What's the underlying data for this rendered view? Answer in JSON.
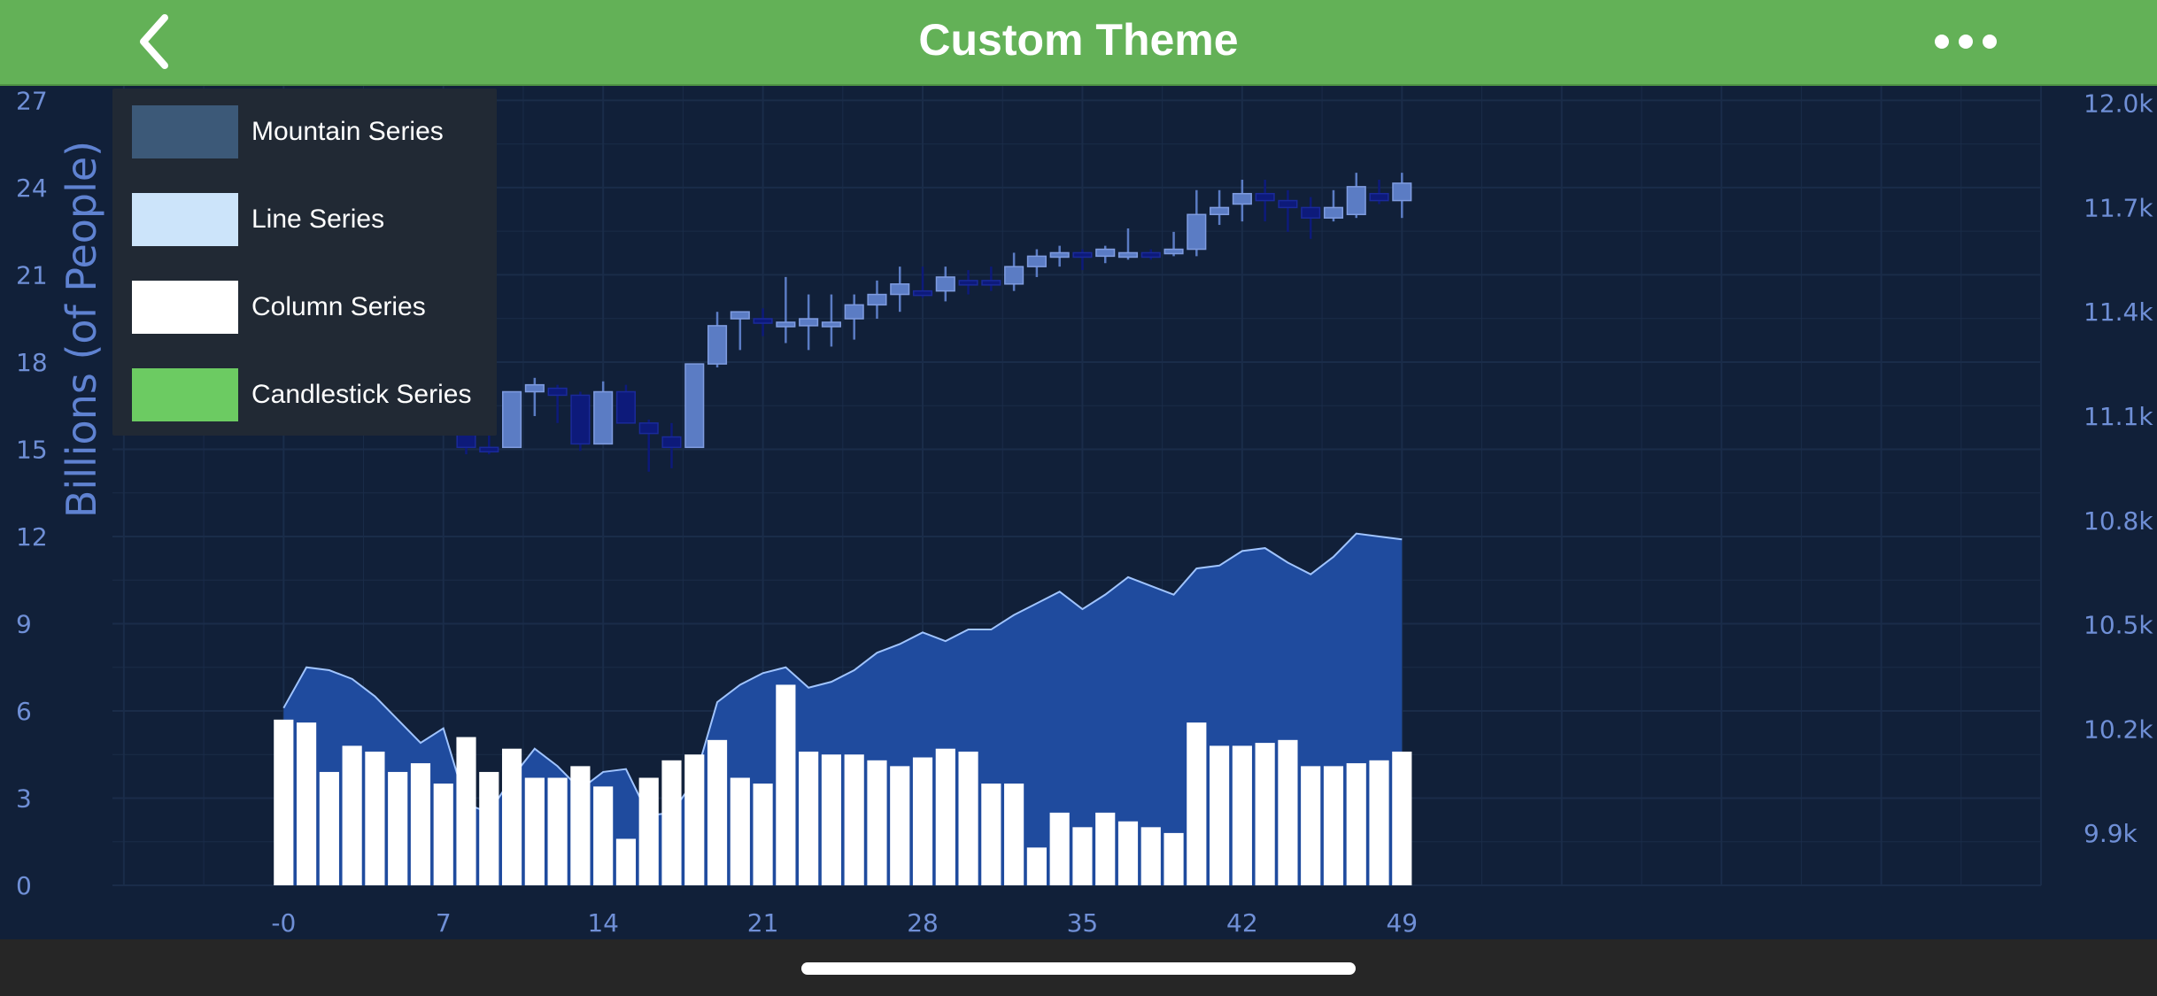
{
  "header": {
    "title": "Custom Theme",
    "back_icon": "chevron-left-icon",
    "more_icon": "ellipsis-icon"
  },
  "colors": {
    "header_bg": "#63b157",
    "chart_bg": "#112039",
    "legend_bg": "#212934",
    "mountain_fill": "#1f4b9e",
    "mountain_line": "#a0c4ff",
    "column_fill": "#ffffff",
    "candle_up": "#5b7cc4",
    "candle_down": "#0d1a7a",
    "tick_label": "#6f8fd6",
    "grid": "#1a2c49"
  },
  "legend": {
    "items": [
      {
        "label": "Mountain Series",
        "color": "#3c5978"
      },
      {
        "label": "Line Series",
        "color": "#cce4fa"
      },
      {
        "label": "Column Series",
        "color": "#ffffff"
      },
      {
        "label": "Candlestick Series",
        "color": "#6ccb62"
      }
    ]
  },
  "chart_data": {
    "type": "combo",
    "title": "",
    "xlabel": "",
    "ylabel": "Billions (of People)",
    "xlim": [
      -7.5,
      77
    ],
    "x_ticks": [
      "-0",
      "7",
      "14",
      "21",
      "28",
      "35",
      "42",
      "49"
    ],
    "y_left_ticks": [
      "0",
      "3",
      "6",
      "9",
      "12",
      "15",
      "18",
      "21",
      "24",
      "27"
    ],
    "y_left_lim": [
      0,
      27.5
    ],
    "y_right_ticks": [
      "9.9k",
      "10.2k",
      "10.5k",
      "10.8k",
      "11.1k",
      "11.4k",
      "11.7k",
      "12.0k"
    ],
    "y_right_lim": [
      9750,
      12050
    ],
    "grid": true,
    "legend_position": "top-left",
    "mountain": {
      "name": "Mountain Series",
      "x": [
        0,
        1,
        2,
        3,
        4,
        5,
        6,
        7,
        8,
        9,
        10,
        11,
        12,
        13,
        14,
        15,
        16,
        17,
        18,
        19,
        20,
        21,
        22,
        23,
        24,
        25,
        26,
        27,
        28,
        29,
        30,
        31,
        32,
        33,
        34,
        35,
        36,
        37,
        38,
        39,
        40,
        41,
        42,
        43,
        44,
        45,
        46,
        47,
        48,
        49
      ],
      "y": [
        6.1,
        7.5,
        7.4,
        7.1,
        6.5,
        5.7,
        4.9,
        5.4,
        2.8,
        2.5,
        3.7,
        4.7,
        4.1,
        3.3,
        3.9,
        4.0,
        2.4,
        2.5,
        3.6,
        6.3,
        6.9,
        7.3,
        7.5,
        6.8,
        7.0,
        7.4,
        8.0,
        8.3,
        8.7,
        8.4,
        8.8,
        8.8,
        9.3,
        9.7,
        10.1,
        9.5,
        10.0,
        10.6,
        10.3,
        10.0,
        10.9,
        11.0,
        11.5,
        11.6,
        11.1,
        10.7,
        11.3,
        12.1,
        12.0,
        11.9
      ]
    },
    "columns": {
      "name": "Column Series",
      "x": [
        0,
        1,
        2,
        3,
        4,
        5,
        6,
        7,
        8,
        9,
        10,
        11,
        12,
        13,
        14,
        15,
        16,
        17,
        18,
        19,
        20,
        21,
        22,
        23,
        24,
        25,
        26,
        27,
        28,
        29,
        30,
        31,
        32,
        33,
        34,
        35,
        36,
        37,
        38,
        39,
        40,
        41,
        42,
        43,
        44,
        45,
        46,
        47,
        48,
        49
      ],
      "y": [
        5.7,
        5.6,
        3.9,
        4.8,
        4.6,
        3.9,
        4.2,
        3.5,
        5.1,
        3.9,
        4.7,
        3.7,
        3.7,
        4.1,
        3.4,
        1.6,
        3.7,
        4.3,
        4.5,
        5.0,
        3.7,
        3.5,
        6.9,
        4.6,
        4.5,
        4.5,
        4.3,
        4.1,
        4.4,
        4.7,
        4.6,
        3.5,
        3.5,
        1.3,
        2.5,
        2.0,
        2.5,
        2.2,
        2.0,
        1.8,
        5.6,
        4.8,
        4.8,
        4.9,
        5.0,
        4.1,
        4.1,
        4.2,
        4.3,
        4.6
      ]
    },
    "candles": {
      "name": "Candlestick Series",
      "axis": "right",
      "x": [
        7,
        8,
        9,
        10,
        11,
        12,
        13,
        14,
        15,
        16,
        17,
        18,
        19,
        20,
        21,
        22,
        23,
        24,
        25,
        26,
        27,
        28,
        29,
        30,
        31,
        32,
        33,
        34,
        35,
        36,
        37,
        38,
        39,
        40,
        41,
        42,
        43,
        44,
        45,
        46,
        47,
        48,
        49
      ],
      "open": [
        11180,
        11180,
        11010,
        11010,
        11170,
        11180,
        11160,
        11020,
        11170,
        11080,
        11040,
        11010,
        11250,
        11380,
        11380,
        11370,
        11360,
        11370,
        11380,
        11420,
        11450,
        11460,
        11460,
        11490,
        11490,
        11480,
        11530,
        11560,
        11570,
        11560,
        11560,
        11570,
        11580,
        11580,
        11680,
        11710,
        11740,
        11720,
        11700,
        11670,
        11680,
        11740,
        11720
      ],
      "high": [
        11290,
        11190,
        11070,
        11170,
        11210,
        11190,
        11170,
        11200,
        11190,
        11090,
        11080,
        11210,
        11400,
        11400,
        11410,
        11500,
        11450,
        11450,
        11450,
        11490,
        11530,
        11530,
        11530,
        11520,
        11530,
        11570,
        11580,
        11590,
        11580,
        11590,
        11640,
        11580,
        11630,
        11750,
        11750,
        11780,
        11780,
        11750,
        11730,
        11750,
        11800,
        11780,
        11800
      ],
      "low": [
        11150,
        10990,
        10990,
        11010,
        11100,
        11080,
        11000,
        11020,
        11080,
        10940,
        10950,
        11010,
        11240,
        11290,
        11330,
        11310,
        11290,
        11300,
        11320,
        11380,
        11400,
        11440,
        11430,
        11450,
        11460,
        11460,
        11500,
        11530,
        11520,
        11540,
        11550,
        11550,
        11560,
        11560,
        11650,
        11660,
        11660,
        11630,
        11610,
        11660,
        11670,
        11710,
        11670
      ],
      "close": [
        11180,
        11010,
        11000,
        11170,
        11190,
        11160,
        11020,
        11170,
        11080,
        11050,
        11010,
        11250,
        11360,
        11400,
        11370,
        11370,
        11380,
        11370,
        11420,
        11450,
        11480,
        11450,
        11500,
        11480,
        11480,
        11530,
        11560,
        11570,
        11560,
        11580,
        11570,
        11560,
        11580,
        11680,
        11700,
        11740,
        11720,
        11700,
        11670,
        11700,
        11760,
        11720,
        11770
      ]
    }
  }
}
